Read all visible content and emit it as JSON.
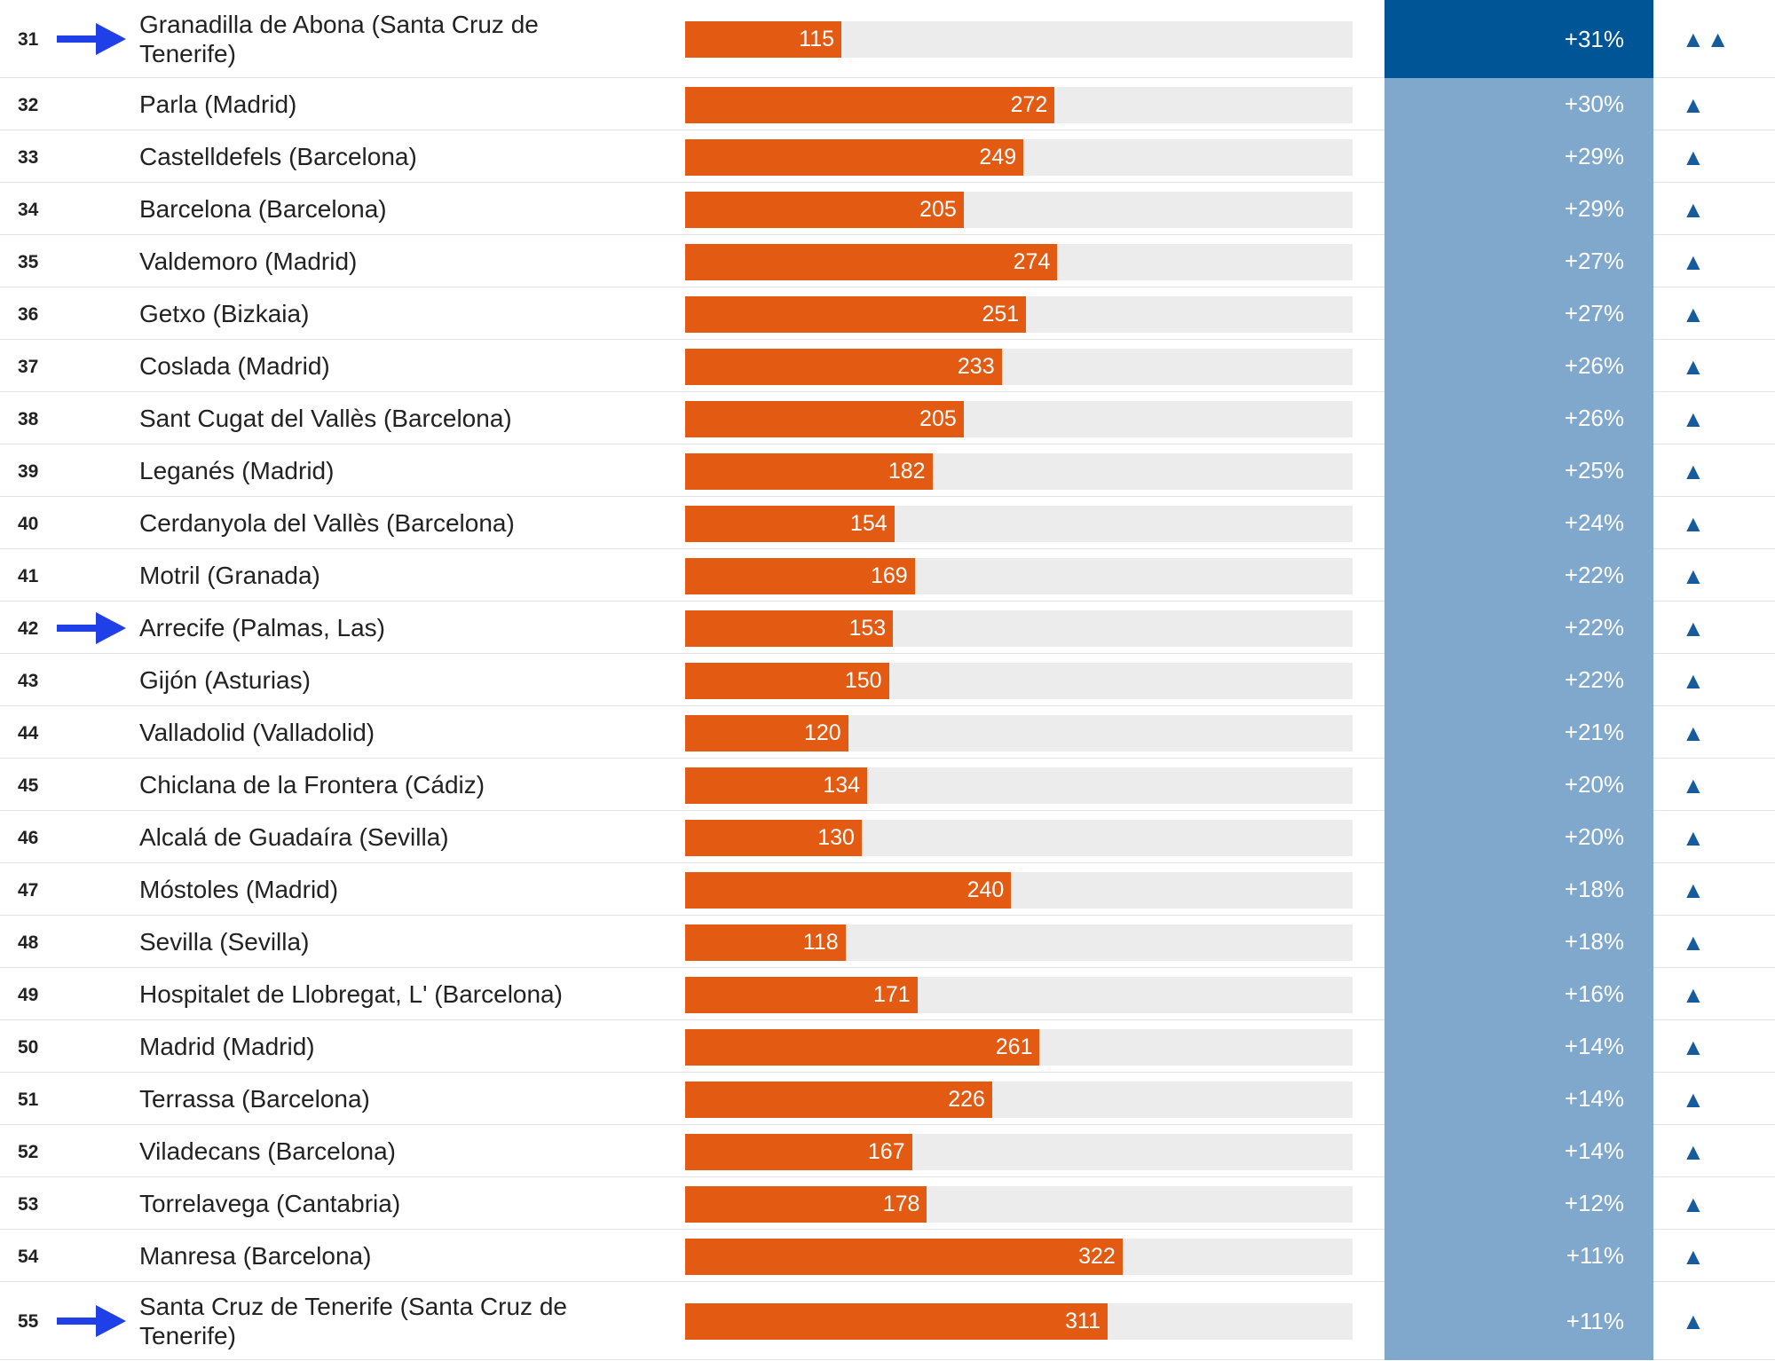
{
  "table": {
    "rows": [
      {
        "rank": 31,
        "name": "Granadilla de Abona (Santa Cruz de Tenerife)",
        "value": 115,
        "change": "+31%",
        "trend": "▲▲",
        "highlight": true,
        "selected": true
      },
      {
        "rank": 32,
        "name": "Parla (Madrid)",
        "value": 272,
        "change": "+30%",
        "trend": "▲"
      },
      {
        "rank": 33,
        "name": "Castelldefels (Barcelona)",
        "value": 249,
        "change": "+29%",
        "trend": "▲"
      },
      {
        "rank": 34,
        "name": "Barcelona (Barcelona)",
        "value": 205,
        "change": "+29%",
        "trend": "▲"
      },
      {
        "rank": 35,
        "name": "Valdemoro (Madrid)",
        "value": 274,
        "change": "+27%",
        "trend": "▲"
      },
      {
        "rank": 36,
        "name": "Getxo (Bizkaia)",
        "value": 251,
        "change": "+27%",
        "trend": "▲"
      },
      {
        "rank": 37,
        "name": "Coslada (Madrid)",
        "value": 233,
        "change": "+26%",
        "trend": "▲"
      },
      {
        "rank": 38,
        "name": "Sant Cugat del Vallès (Barcelona)",
        "value": 205,
        "change": "+26%",
        "trend": "▲"
      },
      {
        "rank": 39,
        "name": "Leganés (Madrid)",
        "value": 182,
        "change": "+25%",
        "trend": "▲"
      },
      {
        "rank": 40,
        "name": "Cerdanyola del Vallès (Barcelona)",
        "value": 154,
        "change": "+24%",
        "trend": "▲"
      },
      {
        "rank": 41,
        "name": "Motril (Granada)",
        "value": 169,
        "change": "+22%",
        "trend": "▲"
      },
      {
        "rank": 42,
        "name": "Arrecife (Palmas, Las)",
        "value": 153,
        "change": "+22%",
        "trend": "▲",
        "highlight": true
      },
      {
        "rank": 43,
        "name": "Gijón (Asturias)",
        "value": 150,
        "change": "+22%",
        "trend": "▲"
      },
      {
        "rank": 44,
        "name": "Valladolid (Valladolid)",
        "value": 120,
        "change": "+21%",
        "trend": "▲"
      },
      {
        "rank": 45,
        "name": "Chiclana de la Frontera (Cádiz)",
        "value": 134,
        "change": "+20%",
        "trend": "▲"
      },
      {
        "rank": 46,
        "name": "Alcalá de Guadaíra (Sevilla)",
        "value": 130,
        "change": "+20%",
        "trend": "▲"
      },
      {
        "rank": 47,
        "name": "Móstoles (Madrid)",
        "value": 240,
        "change": "+18%",
        "trend": "▲"
      },
      {
        "rank": 48,
        "name": "Sevilla (Sevilla)",
        "value": 118,
        "change": "+18%",
        "trend": "▲"
      },
      {
        "rank": 49,
        "name": "Hospitalet de Llobregat, L' (Barcelona)",
        "value": 171,
        "change": "+16%",
        "trend": "▲"
      },
      {
        "rank": 50,
        "name": "Madrid (Madrid)",
        "value": 261,
        "change": "+14%",
        "trend": "▲"
      },
      {
        "rank": 51,
        "name": "Terrassa (Barcelona)",
        "value": 226,
        "change": "+14%",
        "trend": "▲"
      },
      {
        "rank": 52,
        "name": "Viladecans (Barcelona)",
        "value": 167,
        "change": "+14%",
        "trend": "▲"
      },
      {
        "rank": 53,
        "name": "Torrelavega (Cantabria)",
        "value": 178,
        "change": "+12%",
        "trend": "▲"
      },
      {
        "rank": 54,
        "name": "Manresa (Barcelona)",
        "value": 322,
        "change": "+11%",
        "trend": "▲"
      },
      {
        "rank": 55,
        "name": "Santa Cruz de Tenerife (Santa Cruz de Tenerife)",
        "value": 311,
        "change": "+11%",
        "trend": "▲",
        "highlight": true
      }
    ]
  }
}
